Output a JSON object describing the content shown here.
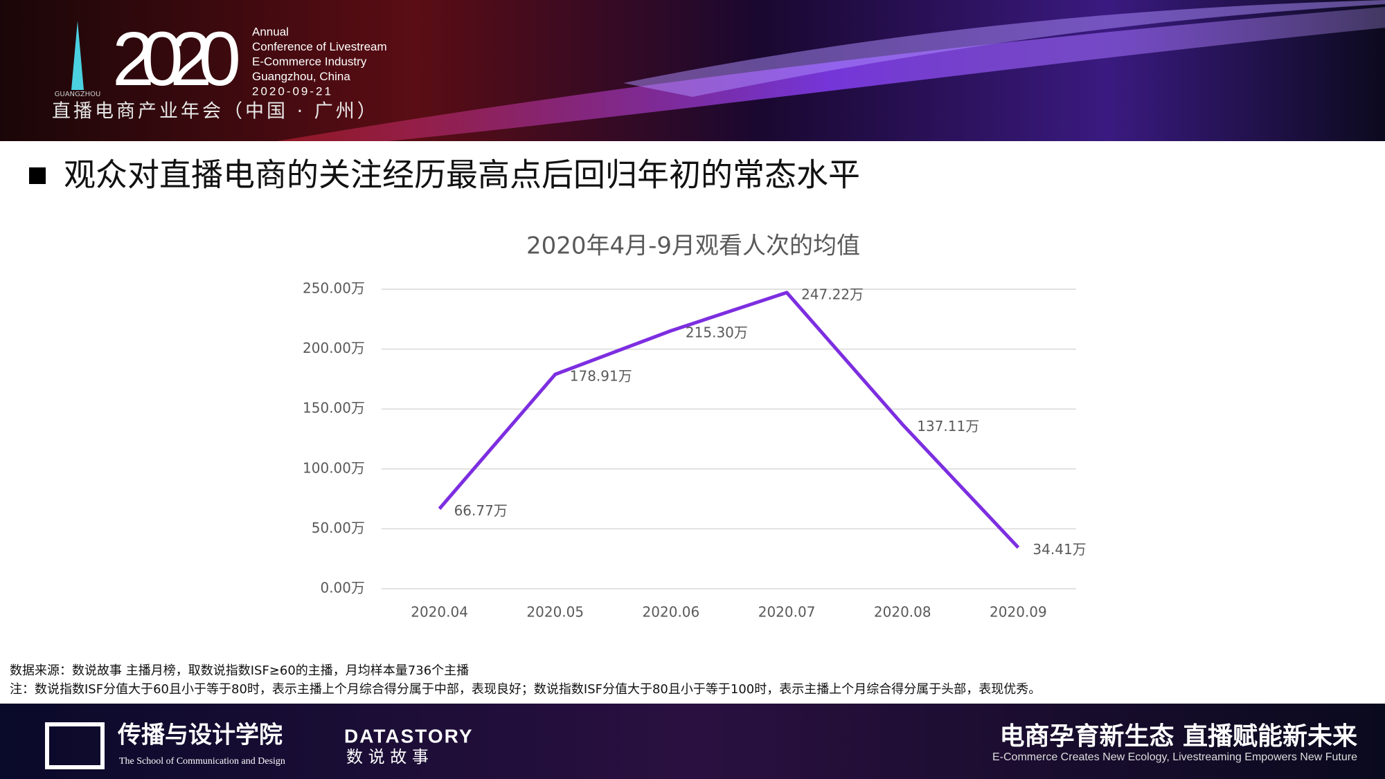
{
  "header": {
    "logo_city": "GUANGZHOU",
    "year": "2020",
    "lines": [
      "Annual",
      "Conference of Livestream",
      "E-Commerce Industry",
      "Guangzhou, China",
      "2020-09-21"
    ],
    "subtitle": "直播电商产业年会（中国 · 广州）"
  },
  "headline": "观众对直播电商的关注经历最高点后回归年初的常态水平",
  "chart_data": {
    "type": "line",
    "title": "2020年4月-9月观看人次的均值",
    "categories": [
      "2020.04",
      "2020.05",
      "2020.06",
      "2020.07",
      "2020.08",
      "2020.09"
    ],
    "series": [
      {
        "name": "观看人次的均值",
        "color": "#7d2ee0",
        "values": [
          66.77,
          178.91,
          215.3,
          247.22,
          137.11,
          34.41
        ],
        "value_labels": [
          "66.77万",
          "178.91万",
          "215.30万",
          "247.22万",
          "137.11万",
          "34.41万"
        ]
      }
    ],
    "ylim": [
      0,
      250
    ],
    "yticks": [
      {
        "value": 0,
        "label": "0.00万"
      },
      {
        "value": 50,
        "label": "50.00万"
      },
      {
        "value": 100,
        "label": "100.00万"
      },
      {
        "value": 150,
        "label": "150.00万"
      },
      {
        "value": 200,
        "label": "200.00万"
      },
      {
        "value": 250,
        "label": "250.00万"
      }
    ],
    "grid": true
  },
  "notes": [
    "数据来源：数说故事 主播月榜，取数说指数ISF≥60的主播，月均样本量736个主播",
    "注：数说指数ISF分值大于60且小于等于80时，表示主播上个月综合得分属于中部，表现良好；数说指数ISF分值大于80且小于等于100时，表示主播上个月综合得分属于头部，表现优秀。"
  ],
  "footer": {
    "school": "传播与设计学院",
    "school_en": "The School of Communication and Design",
    "brand": "DATASTORY",
    "brand_cn": "数 说 故 事",
    "slogan": "电商孕育新生态 直播赋能新未来",
    "slogan_en": "E-Commerce Creates New Ecology, Livestreaming Empowers New Future"
  }
}
